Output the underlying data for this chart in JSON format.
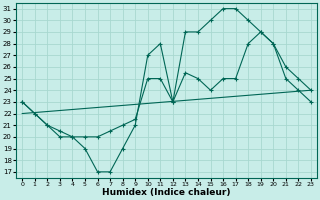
{
  "xlabel": "Humidex (Indice chaleur)",
  "bg_color": "#c8ede8",
  "grid_color": "#a8d8d0",
  "line_color": "#006655",
  "xlim": [
    -0.5,
    23.5
  ],
  "ylim": [
    16.5,
    31.5
  ],
  "yticks": [
    17,
    18,
    19,
    20,
    21,
    22,
    23,
    24,
    25,
    26,
    27,
    28,
    29,
    30,
    31
  ],
  "xticks": [
    0,
    1,
    2,
    3,
    4,
    5,
    6,
    7,
    8,
    9,
    10,
    11,
    12,
    13,
    14,
    15,
    16,
    17,
    18,
    19,
    20,
    21,
    22,
    23
  ],
  "line1_x": [
    0,
    1,
    2,
    3,
    4,
    5,
    6,
    7,
    8,
    9,
    10,
    11,
    12,
    13,
    14,
    15,
    16,
    17,
    18,
    19,
    20,
    21,
    22,
    23
  ],
  "line1_y": [
    23,
    22,
    21,
    20,
    20,
    19,
    17,
    17,
    19,
    21,
    27,
    28,
    23,
    29,
    29,
    30,
    31,
    31,
    30,
    29,
    28,
    25,
    24,
    23
  ],
  "line2_x": [
    0,
    1,
    2,
    3,
    4,
    5,
    6,
    7,
    8,
    9,
    10,
    11,
    12,
    13,
    14,
    15,
    16,
    17,
    18,
    19,
    20,
    21,
    22,
    23
  ],
  "line2_y": [
    23,
    22,
    21,
    20.5,
    20,
    20,
    20,
    20.5,
    21,
    21.5,
    25,
    25,
    23,
    25.5,
    25,
    24,
    25,
    25,
    28,
    29,
    28,
    26,
    25,
    24
  ],
  "line3_x": [
    0,
    23
  ],
  "line3_y": [
    22,
    24
  ]
}
